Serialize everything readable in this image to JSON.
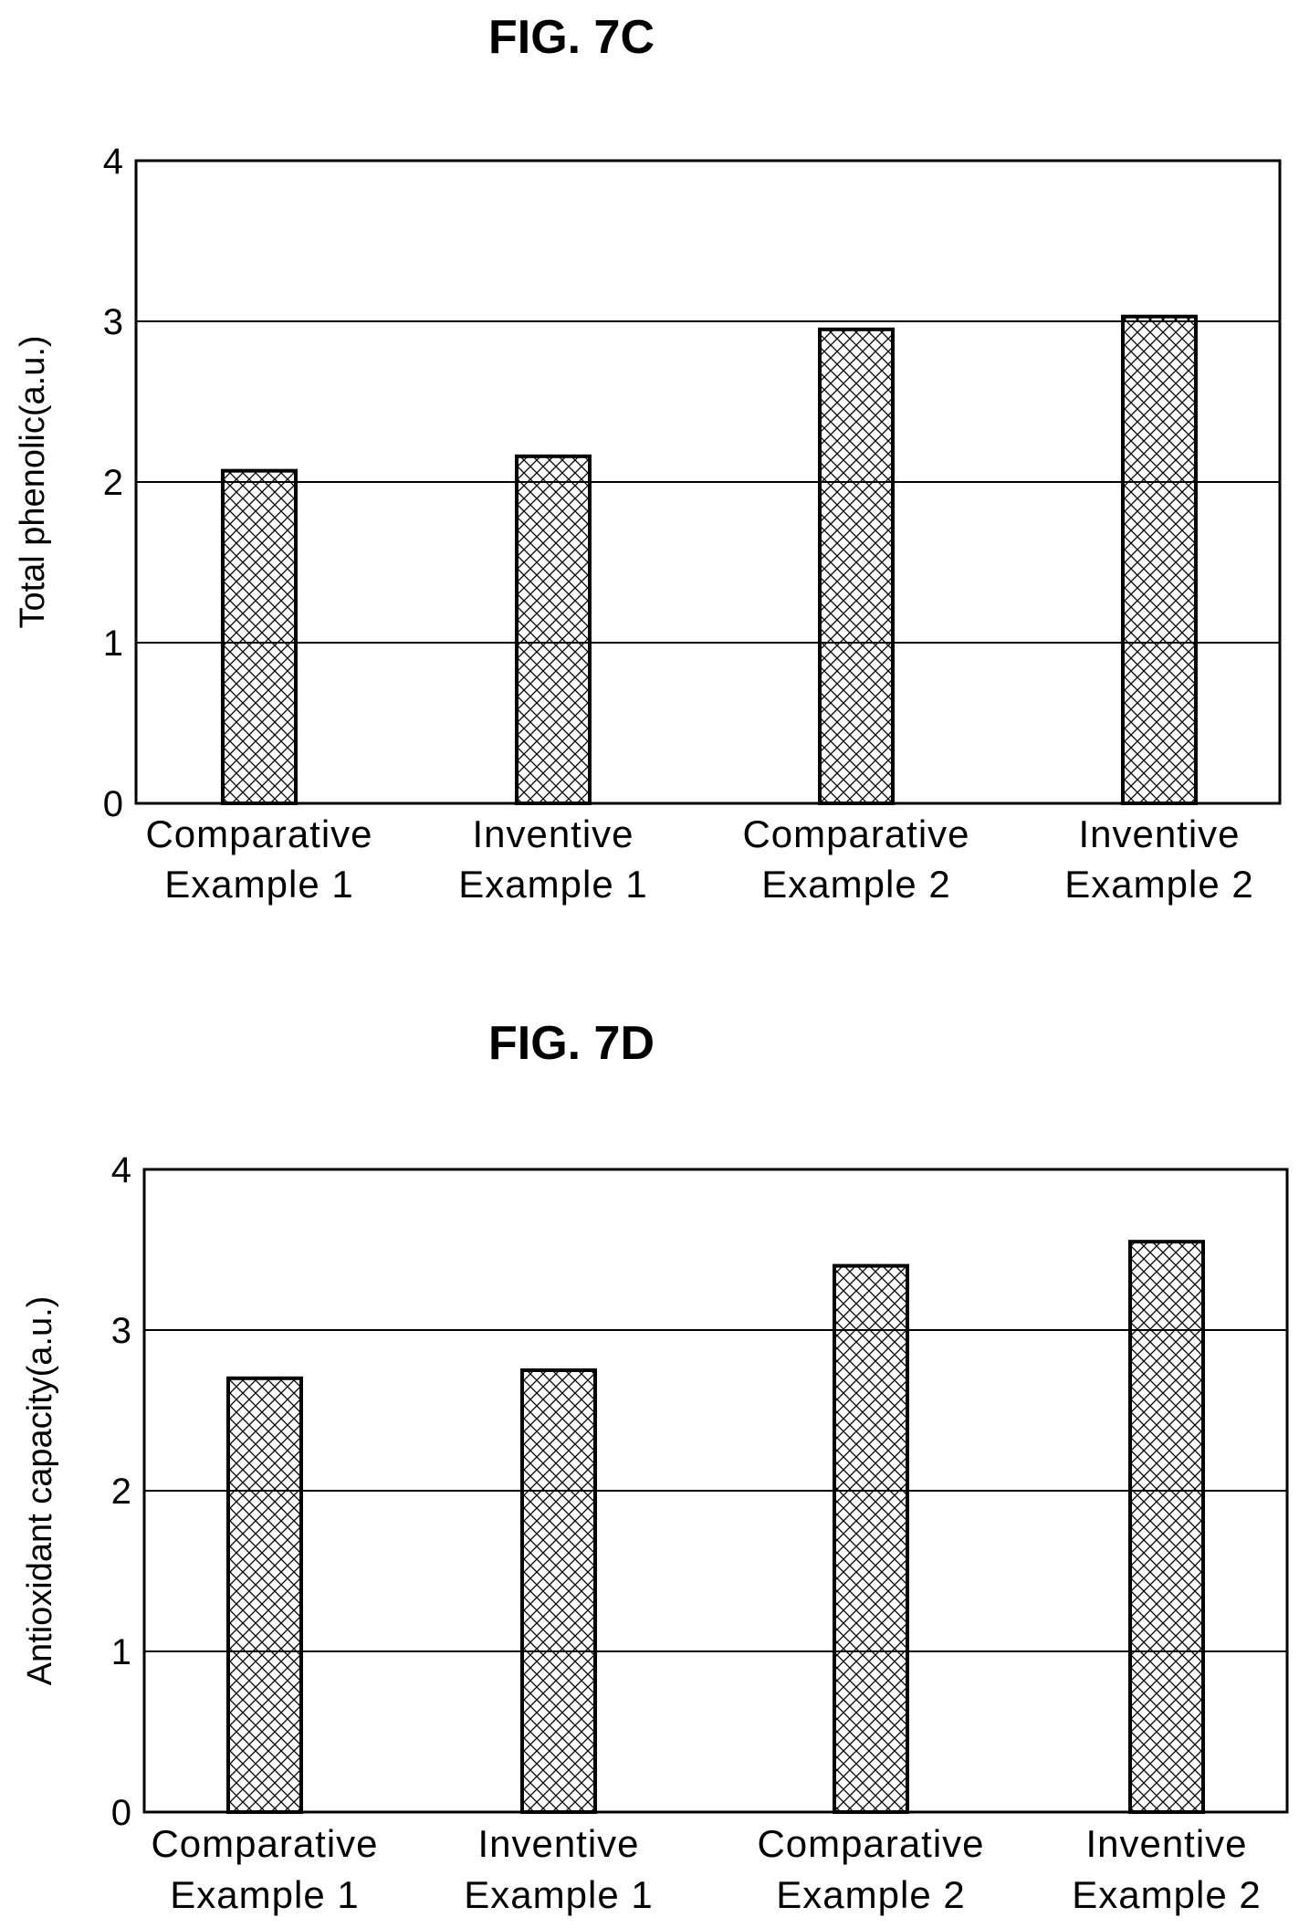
{
  "chart_data": [
    {
      "type": "bar",
      "title": "FIG. 7C",
      "ylabel": "Total phenolic(a.u.)",
      "xlabel": "",
      "categories": [
        [
          "Comparative",
          "Example 1"
        ],
        [
          "Inventive",
          "Example 1"
        ],
        [
          "Comparative",
          "Example 2"
        ],
        [
          "Inventive",
          "Example 2"
        ]
      ],
      "values": [
        2.07,
        2.16,
        2.95,
        3.03
      ],
      "ylim": [
        0,
        4
      ],
      "yticks": [
        0,
        1,
        2,
        3,
        4
      ],
      "grid": true,
      "bar_pattern": "crosshatch",
      "bar_color": "#000000"
    },
    {
      "type": "bar",
      "title": "FIG. 7D",
      "ylabel": "Antioxidant capacity(a.u.)",
      "xlabel": "",
      "categories": [
        [
          "Comparative",
          "Example 1"
        ],
        [
          "Inventive",
          "Example 1"
        ],
        [
          "Comparative",
          "Example 2"
        ],
        [
          "Inventive",
          "Example 2"
        ]
      ],
      "values": [
        2.7,
        2.75,
        3.4,
        3.55
      ],
      "ylim": [
        0,
        4
      ],
      "yticks": [
        0,
        1,
        2,
        3,
        4
      ],
      "grid": true,
      "bar_pattern": "crosshatch",
      "bar_color": "#000000"
    }
  ]
}
